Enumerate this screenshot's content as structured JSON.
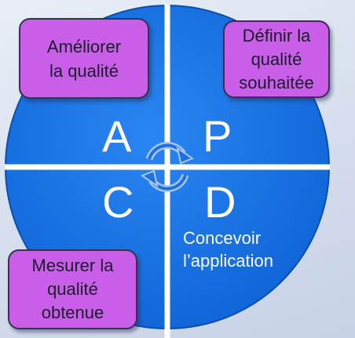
{
  "colors": {
    "circle": "#1475e8",
    "box_fill": "#c95ee8",
    "divider": "#ffffff"
  },
  "quadrant_letters": {
    "a": "A",
    "p": "P",
    "c": "C",
    "d": "D"
  },
  "boxes": {
    "ameliorer": "Améliorer\nla qualité",
    "definir": "Définir la\nqualité\nsouhaitée",
    "mesurer": "Mesurer la\nqualité\nobtenue"
  },
  "notes": {
    "concevoir": "Concevoir\nl’application"
  },
  "icons": {
    "cycle": "cycle-arrows-icon"
  }
}
